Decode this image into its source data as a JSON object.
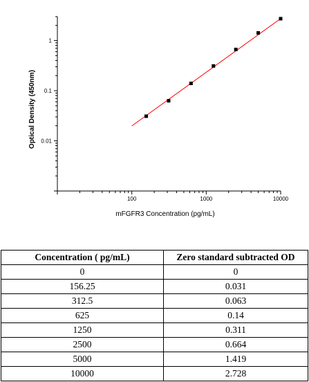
{
  "chart_data": {
    "type": "scatter",
    "xlabel": "mFGFR3 Concentration (pg/mL)",
    "ylabel": "Optical Density (450nm)",
    "xscale": "log",
    "yscale": "log",
    "xlim": [
      10,
      10000
    ],
    "ylim": [
      0.001,
      3
    ],
    "x_ticks": [
      {
        "value": 100,
        "label": "100"
      },
      {
        "value": 1000,
        "label": "1000"
      },
      {
        "value": 10000,
        "label": "10000"
      }
    ],
    "y_ticks": [
      {
        "value": 0.01,
        "label": "0.01"
      },
      {
        "value": 0.1,
        "label": "0.1"
      },
      {
        "value": 1,
        "label": "1"
      }
    ],
    "grid": false,
    "points": [
      {
        "x": 156.25,
        "y": 0.031
      },
      {
        "x": 312.5,
        "y": 0.063
      },
      {
        "x": 625,
        "y": 0.14
      },
      {
        "x": 1250,
        "y": 0.311
      },
      {
        "x": 2500,
        "y": 0.664
      },
      {
        "x": 5000,
        "y": 1.419
      },
      {
        "x": 10000,
        "y": 2.728
      }
    ],
    "fit_line": {
      "color": "#ff0000",
      "x": [
        100,
        10000
      ],
      "y": [
        0.0198,
        2.74
      ]
    },
    "point_color": "#000000"
  },
  "table": {
    "headers": [
      "Concentration ( pg/mL)",
      "Zero standard subtracted OD"
    ],
    "rows": [
      [
        "0",
        "0"
      ],
      [
        "156.25",
        "0.031"
      ],
      [
        "312.5",
        "0.063"
      ],
      [
        "625",
        "0.14"
      ],
      [
        "1250",
        "0.311"
      ],
      [
        "2500",
        "0.664"
      ],
      [
        "5000",
        "1.419"
      ],
      [
        "10000",
        "2.728"
      ]
    ]
  }
}
